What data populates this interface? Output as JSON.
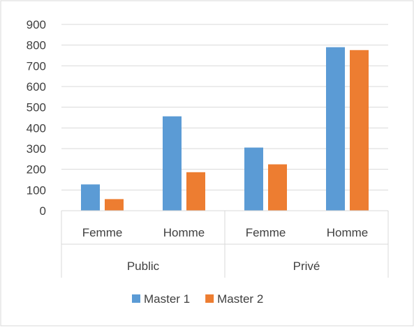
{
  "chart_data": {
    "type": "bar",
    "categories": [
      {
        "label": "Femme",
        "group": "Public"
      },
      {
        "label": "Homme",
        "group": "Public"
      },
      {
        "label": "Femme",
        "group": "Privé"
      },
      {
        "label": "Homme",
        "group": "Privé"
      }
    ],
    "groups": [
      "Public",
      "Privé"
    ],
    "series": [
      {
        "name": "Master 1",
        "color": "#5b9bd5",
        "values": [
          127,
          456,
          305,
          790
        ]
      },
      {
        "name": "Master 2",
        "color": "#ed7d31",
        "values": [
          56,
          186,
          224,
          776
        ]
      }
    ],
    "ylim": [
      0,
      900
    ],
    "yticks": [
      "0",
      "100",
      "200",
      "300",
      "400",
      "500",
      "600",
      "700",
      "800",
      "900"
    ],
    "grid": true,
    "legend_position": "bottom"
  }
}
